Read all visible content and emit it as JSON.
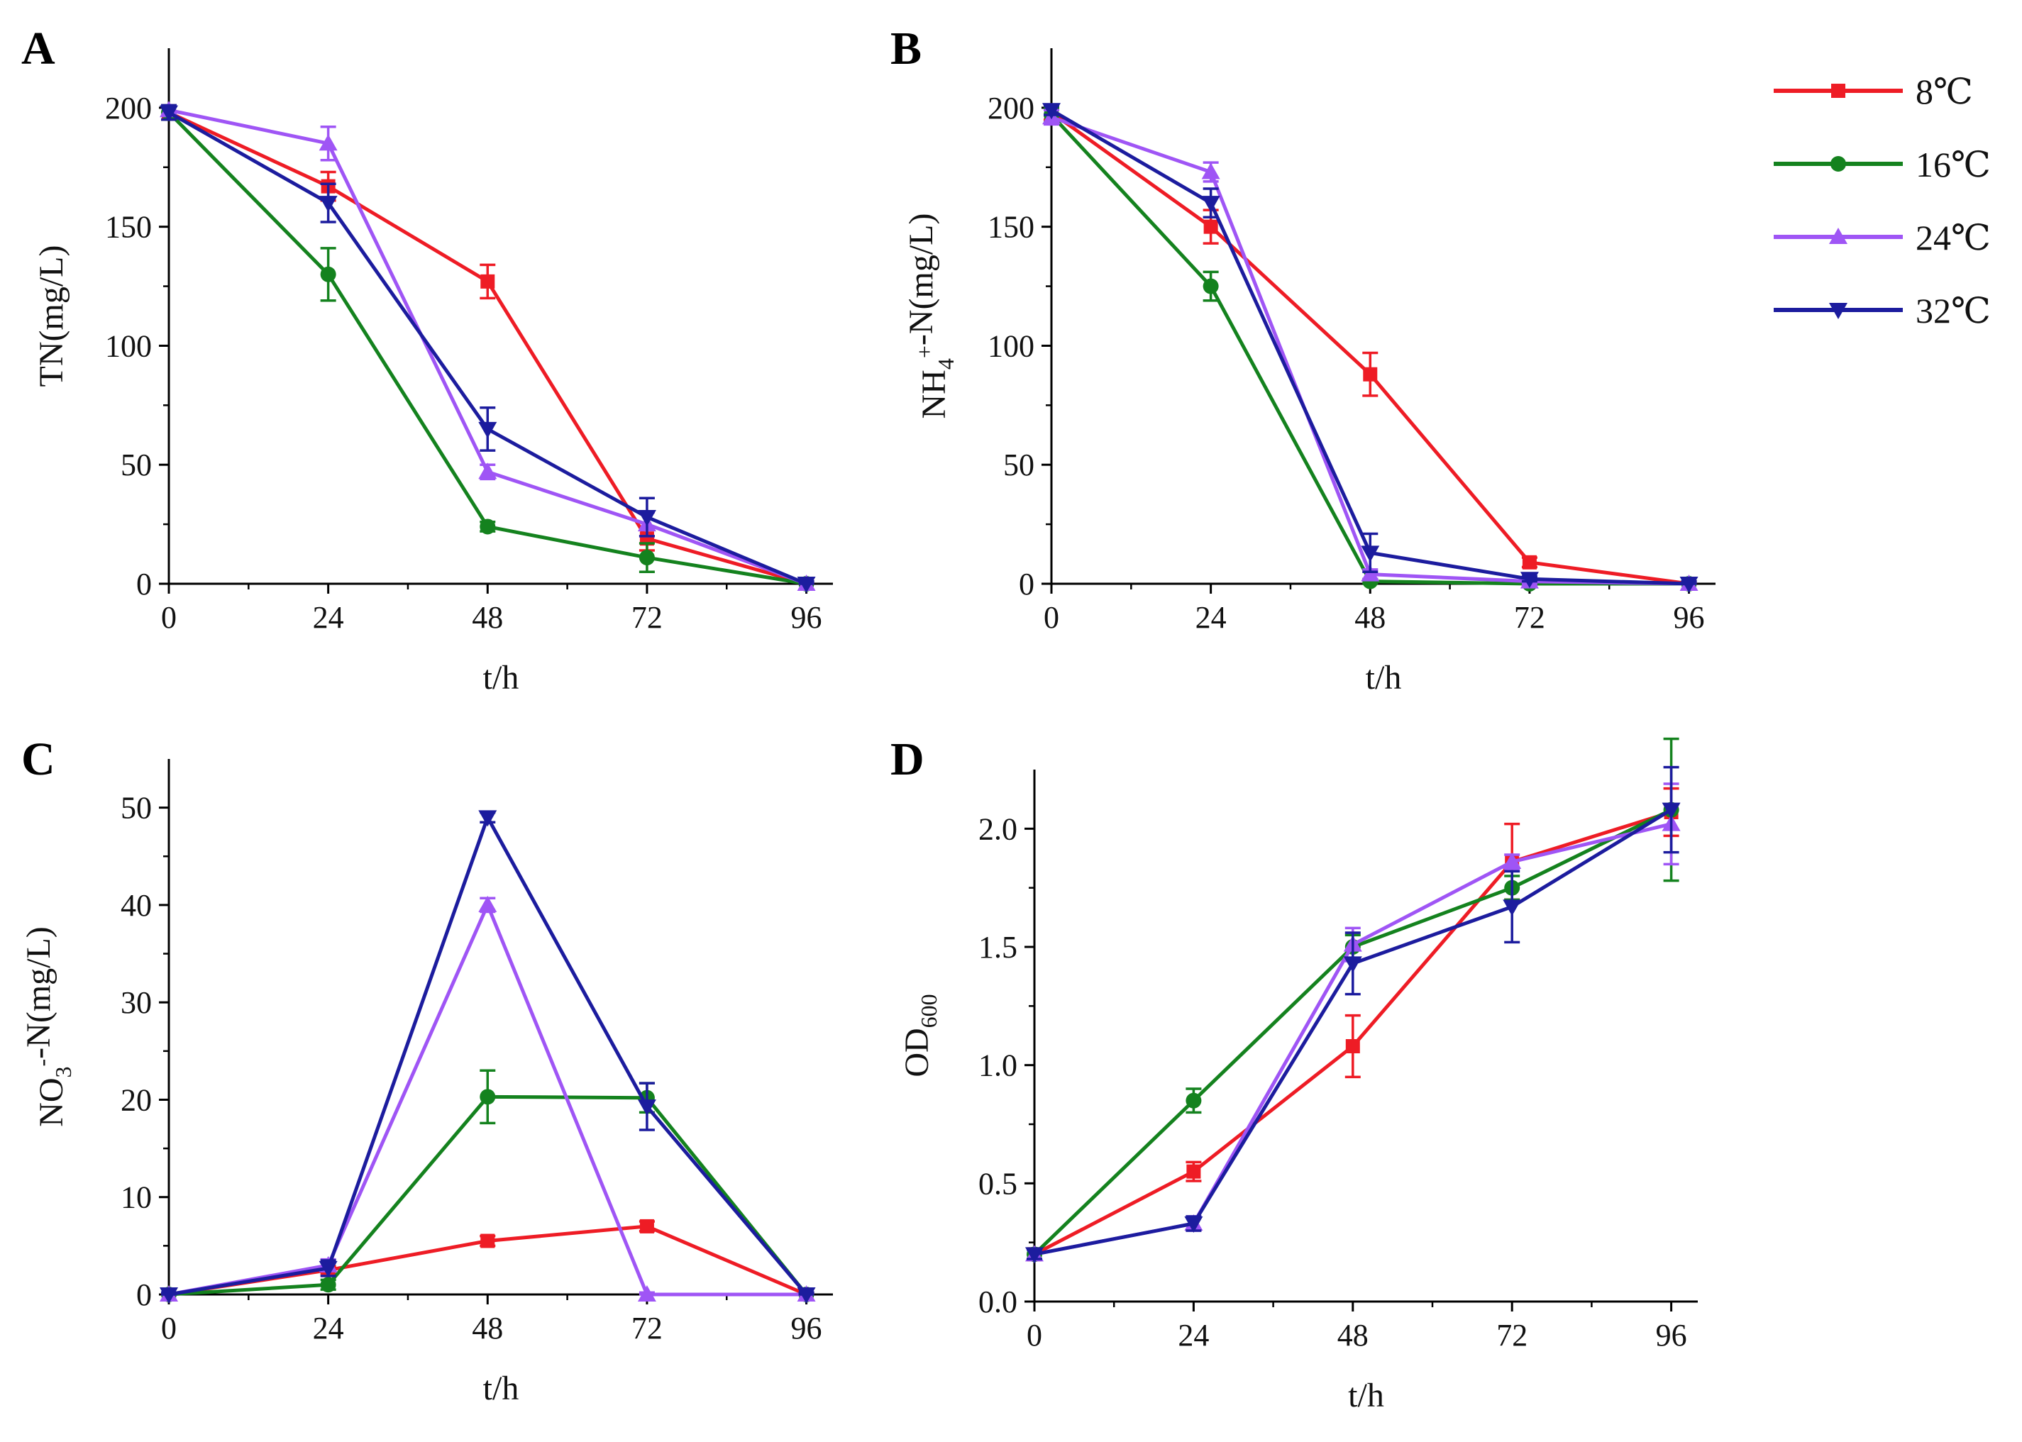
{
  "legend": {
    "position": "top-right",
    "items": [
      {
        "label": "8℃",
        "color": "#ee1c25",
        "marker": "square"
      },
      {
        "label": "16℃",
        "color": "#14821e",
        "marker": "circle"
      },
      {
        "label": "24℃",
        "color": "#9f55f5",
        "marker": "triangle-up"
      },
      {
        "label": "32℃",
        "color": "#1c1c9e",
        "marker": "triangle-down"
      }
    ]
  },
  "chart_data": [
    {
      "panel": "A",
      "type": "line",
      "xlabel": "t/h",
      "ylabel": {
        "parts": [
          {
            "t": "TN(mg/L)"
          }
        ]
      },
      "x": [
        0,
        24,
        48,
        72,
        96
      ],
      "xlim": [
        0,
        100
      ],
      "ylim": [
        0,
        225
      ],
      "yticks": [
        "0",
        "50",
        "100",
        "150",
        "200"
      ],
      "series": [
        {
          "name": "8℃",
          "values": [
            198,
            167,
            127,
            19,
            0
          ],
          "errors": [
            3,
            6,
            7,
            5,
            1
          ]
        },
        {
          "name": "16℃",
          "values": [
            198,
            130,
            24,
            11,
            0
          ],
          "errors": [
            3,
            11,
            2,
            6,
            1
          ]
        },
        {
          "name": "24℃",
          "values": [
            199,
            185,
            47,
            25,
            0
          ],
          "errors": [
            2,
            7,
            3,
            5,
            1
          ]
        },
        {
          "name": "32℃",
          "values": [
            198,
            160,
            65,
            28,
            0
          ],
          "errors": [
            3,
            8,
            9,
            8,
            1
          ]
        }
      ]
    },
    {
      "panel": "B",
      "type": "line",
      "xlabel": "t/h",
      "ylabel": {
        "parts": [
          {
            "t": "NH"
          },
          {
            "t": "4",
            "s": "sub"
          },
          {
            "t": "+",
            "s": "sup"
          },
          {
            "t": "-N(mg/L)"
          }
        ]
      },
      "x": [
        0,
        24,
        48,
        72,
        96
      ],
      "xlim": [
        0,
        100
      ],
      "ylim": [
        0,
        225
      ],
      "yticks": [
        "0",
        "50",
        "100",
        "150",
        "200"
      ],
      "series": [
        {
          "name": "8℃",
          "values": [
            198,
            150,
            88,
            9,
            0
          ],
          "errors": [
            3,
            7,
            9,
            2,
            1
          ]
        },
        {
          "name": "16℃",
          "values": [
            197,
            125,
            1,
            0,
            0
          ],
          "errors": [
            3,
            6,
            1,
            1,
            1
          ]
        },
        {
          "name": "24℃",
          "values": [
            196,
            173,
            4,
            1,
            0
          ],
          "errors": [
            3,
            4,
            2,
            1,
            1
          ]
        },
        {
          "name": "32℃",
          "values": [
            199,
            160,
            13,
            2,
            0
          ],
          "errors": [
            2,
            6,
            8,
            1,
            1
          ]
        }
      ]
    },
    {
      "panel": "C",
      "type": "line",
      "xlabel": "t/h",
      "ylabel": {
        "parts": [
          {
            "t": "NO"
          },
          {
            "t": "3",
            "s": "sub"
          },
          {
            "t": "-",
            "s": "sup"
          },
          {
            "t": "-N(mg/L)"
          }
        ]
      },
      "x": [
        0,
        24,
        48,
        72,
        96
      ],
      "xlim": [
        0,
        100
      ],
      "ylim": [
        0,
        55
      ],
      "yticks": [
        "0",
        "10",
        "20",
        "30",
        "40",
        "50"
      ],
      "series": [
        {
          "name": "8℃",
          "values": [
            0,
            2.5,
            5.5,
            7,
            0
          ],
          "errors": [
            0.2,
            0.4,
            0.5,
            0.5,
            0.2
          ]
        },
        {
          "name": "16℃",
          "values": [
            0,
            1,
            20.3,
            20.2,
            0
          ],
          "errors": [
            0.2,
            0.5,
            2.7,
            1.5,
            0.2
          ]
        },
        {
          "name": "24℃",
          "values": [
            0,
            3,
            40,
            0,
            0
          ],
          "errors": [
            0.2,
            0.6,
            0.7,
            0.2,
            0.2
          ]
        },
        {
          "name": "32℃",
          "values": [
            0,
            2.7,
            49,
            19.3,
            0
          ],
          "errors": [
            0.2,
            0.8,
            0.5,
            2.4,
            0.2
          ]
        }
      ]
    },
    {
      "panel": "D",
      "type": "line",
      "xlabel": "t/h",
      "ylabel": {
        "parts": [
          {
            "t": "OD"
          },
          {
            "t": "600",
            "s": "sub"
          }
        ]
      },
      "x": [
        0,
        24,
        48,
        72,
        96
      ],
      "xlim": [
        0,
        100
      ],
      "ylim": [
        0,
        2.25
      ],
      "yticks": [
        "0.0",
        "0.5",
        "1.0",
        "1.5",
        "2.0"
      ],
      "series": [
        {
          "name": "8℃",
          "values": [
            0.2,
            0.55,
            1.08,
            1.86,
            2.07
          ],
          "errors": [
            0.02,
            0.04,
            0.13,
            0.16,
            0.1
          ]
        },
        {
          "name": "16℃",
          "values": [
            0.2,
            0.85,
            1.5,
            1.75,
            2.08
          ],
          "errors": [
            0.02,
            0.05,
            0.05,
            0.05,
            0.3
          ]
        },
        {
          "name": "24℃",
          "values": [
            0.2,
            0.33,
            1.51,
            1.86,
            2.02
          ],
          "errors": [
            0.02,
            0.03,
            0.07,
            0.03,
            0.17
          ]
        },
        {
          "name": "32℃",
          "values": [
            0.2,
            0.33,
            1.43,
            1.67,
            2.08
          ],
          "errors": [
            0.02,
            0.03,
            0.13,
            0.15,
            0.18
          ]
        }
      ]
    }
  ]
}
